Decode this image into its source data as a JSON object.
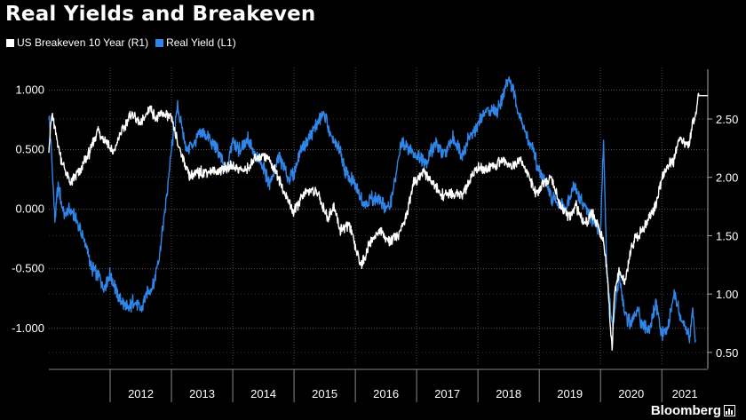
{
  "title": "Real Yields and Breakeven",
  "brand": "Bloomberg",
  "chart_data": {
    "type": "line",
    "x_range": [
      2011.0,
      2021.75
    ],
    "x_tick_labels": [
      "2012",
      "2013",
      "2014",
      "2015",
      "2016",
      "2017",
      "2018",
      "2019",
      "2020",
      "2021"
    ],
    "left_axis": {
      "ylim": [
        -1.3,
        1.1
      ],
      "ticks": [
        1.0,
        0.5,
        0.0,
        -0.5,
        -1.0
      ],
      "tick_labels": [
        "1.000",
        "0.500",
        "0.000",
        "-0.500",
        "-1.000"
      ]
    },
    "right_axis": {
      "ylim": [
        0.4,
        2.85
      ],
      "ticks": [
        2.5,
        2.0,
        1.5,
        1.0,
        0.5
      ],
      "tick_labels": [
        "2.50",
        "2.00",
        "1.50",
        "1.00",
        "0.50"
      ]
    },
    "grid": true,
    "legend_position": "top-left",
    "series": [
      {
        "name": "US Breakeven 10 Year  (R1)",
        "axis": "right",
        "color": "#ffffff",
        "x": [
          2011.0,
          2011.05,
          2011.2,
          2011.35,
          2011.5,
          2011.65,
          2011.8,
          2011.95,
          2012.05,
          2012.15,
          2012.35,
          2012.5,
          2012.65,
          2012.75,
          2012.85,
          2013.0,
          2013.1,
          2013.3,
          2013.5,
          2013.75,
          2014.0,
          2014.2,
          2014.35,
          2014.5,
          2014.6,
          2014.75,
          2014.85,
          2015.0,
          2015.1,
          2015.25,
          2015.4,
          2015.55,
          2015.65,
          2015.75,
          2015.9,
          2016.0,
          2016.1,
          2016.25,
          2016.4,
          2016.55,
          2016.7,
          2016.85,
          2016.95,
          2017.1,
          2017.25,
          2017.4,
          2017.55,
          2017.75,
          2017.9,
          2018.0,
          2018.1,
          2018.25,
          2018.4,
          2018.55,
          2018.7,
          2018.8,
          2018.95,
          2019.05,
          2019.2,
          2019.35,
          2019.5,
          2019.6,
          2019.75,
          2019.85,
          2019.95,
          2020.05,
          2020.12,
          2020.16,
          2020.19,
          2020.22,
          2020.3,
          2020.4,
          2020.5,
          2020.6,
          2020.75,
          2020.9,
          2021.0,
          2021.1,
          2021.2,
          2021.3,
          2021.35,
          2021.45,
          2021.5,
          2021.55,
          2021.6,
          2021.75
        ],
        "values": [
          2.25,
          2.55,
          2.15,
          1.95,
          2.05,
          2.2,
          2.4,
          2.3,
          2.2,
          2.35,
          2.55,
          2.45,
          2.6,
          2.5,
          2.55,
          2.5,
          2.3,
          2.0,
          2.05,
          2.05,
          2.1,
          2.05,
          2.15,
          2.2,
          2.15,
          2.0,
          1.85,
          1.7,
          1.8,
          1.9,
          1.85,
          1.65,
          1.75,
          1.55,
          1.6,
          1.4,
          1.25,
          1.45,
          1.55,
          1.45,
          1.5,
          1.7,
          1.95,
          2.05,
          1.95,
          1.85,
          1.85,
          1.85,
          2.0,
          2.1,
          2.05,
          2.1,
          2.15,
          2.1,
          2.15,
          2.05,
          1.85,
          1.95,
          2.0,
          1.75,
          1.65,
          1.75,
          1.6,
          1.7,
          1.6,
          1.45,
          1.1,
          0.7,
          0.55,
          0.95,
          1.2,
          1.1,
          1.4,
          1.5,
          1.6,
          1.75,
          2.0,
          2.1,
          2.15,
          2.35,
          2.3,
          2.3,
          2.45,
          2.55,
          2.7,
          2.7
        ]
      },
      {
        "name": "Real Yield (L1)",
        "axis": "left",
        "color": "#2f86e8",
        "x": [
          2011.0,
          2011.05,
          2011.1,
          2011.15,
          2011.25,
          2011.35,
          2011.5,
          2011.6,
          2011.7,
          2011.8,
          2011.9,
          2012.0,
          2012.15,
          2012.3,
          2012.4,
          2012.5,
          2012.6,
          2012.7,
          2012.8,
          2012.9,
          2013.0,
          2013.1,
          2013.25,
          2013.35,
          2013.5,
          2013.6,
          2013.75,
          2013.9,
          2014.0,
          2014.1,
          2014.25,
          2014.35,
          2014.5,
          2014.6,
          2014.75,
          2014.9,
          2015.0,
          2015.1,
          2015.25,
          2015.4,
          2015.5,
          2015.6,
          2015.75,
          2015.85,
          2016.0,
          2016.15,
          2016.3,
          2016.45,
          2016.55,
          2016.65,
          2016.75,
          2016.9,
          2017.0,
          2017.15,
          2017.3,
          2017.45,
          2017.6,
          2017.75,
          2017.85,
          2018.0,
          2018.15,
          2018.3,
          2018.4,
          2018.5,
          2018.6,
          2018.7,
          2018.8,
          2018.9,
          2019.0,
          2019.1,
          2019.2,
          2019.35,
          2019.45,
          2019.55,
          2019.65,
          2019.75,
          2019.9,
          2020.0,
          2020.05,
          2020.1,
          2020.15,
          2020.2,
          2020.3,
          2020.4,
          2020.5,
          2020.6,
          2020.7,
          2020.8,
          2020.9,
          2021.0,
          2021.1,
          2021.2,
          2021.3,
          2021.4,
          2021.45,
          2021.5,
          2021.55
        ],
        "values": [
          0.8,
          0.4,
          -0.1,
          0.2,
          -0.05,
          0.0,
          -0.15,
          -0.3,
          -0.5,
          -0.55,
          -0.65,
          -0.55,
          -0.75,
          -0.85,
          -0.75,
          -0.85,
          -0.7,
          -0.65,
          -0.4,
          0.0,
          0.5,
          0.85,
          0.5,
          0.55,
          0.65,
          0.6,
          0.5,
          0.3,
          0.6,
          0.5,
          0.6,
          0.45,
          0.35,
          0.2,
          0.45,
          0.25,
          0.3,
          0.5,
          0.6,
          0.75,
          0.8,
          0.6,
          0.5,
          0.3,
          0.2,
          0.05,
          0.1,
          0.05,
          0.0,
          0.25,
          0.55,
          0.5,
          0.45,
          0.4,
          0.55,
          0.45,
          0.6,
          0.45,
          0.6,
          0.7,
          0.85,
          0.8,
          0.95,
          1.1,
          0.95,
          0.75,
          0.6,
          0.5,
          0.3,
          0.25,
          0.1,
          0.05,
          0.0,
          0.2,
          0.1,
          0.0,
          -0.1,
          -0.2,
          0.6,
          -0.5,
          -0.8,
          -1.0,
          -0.55,
          -0.9,
          -0.95,
          -0.85,
          -1.0,
          -1.0,
          -0.8,
          -1.05,
          -1.0,
          -0.7,
          -0.9,
          -1.0,
          -1.1,
          -0.85,
          -1.15
        ]
      }
    ]
  }
}
